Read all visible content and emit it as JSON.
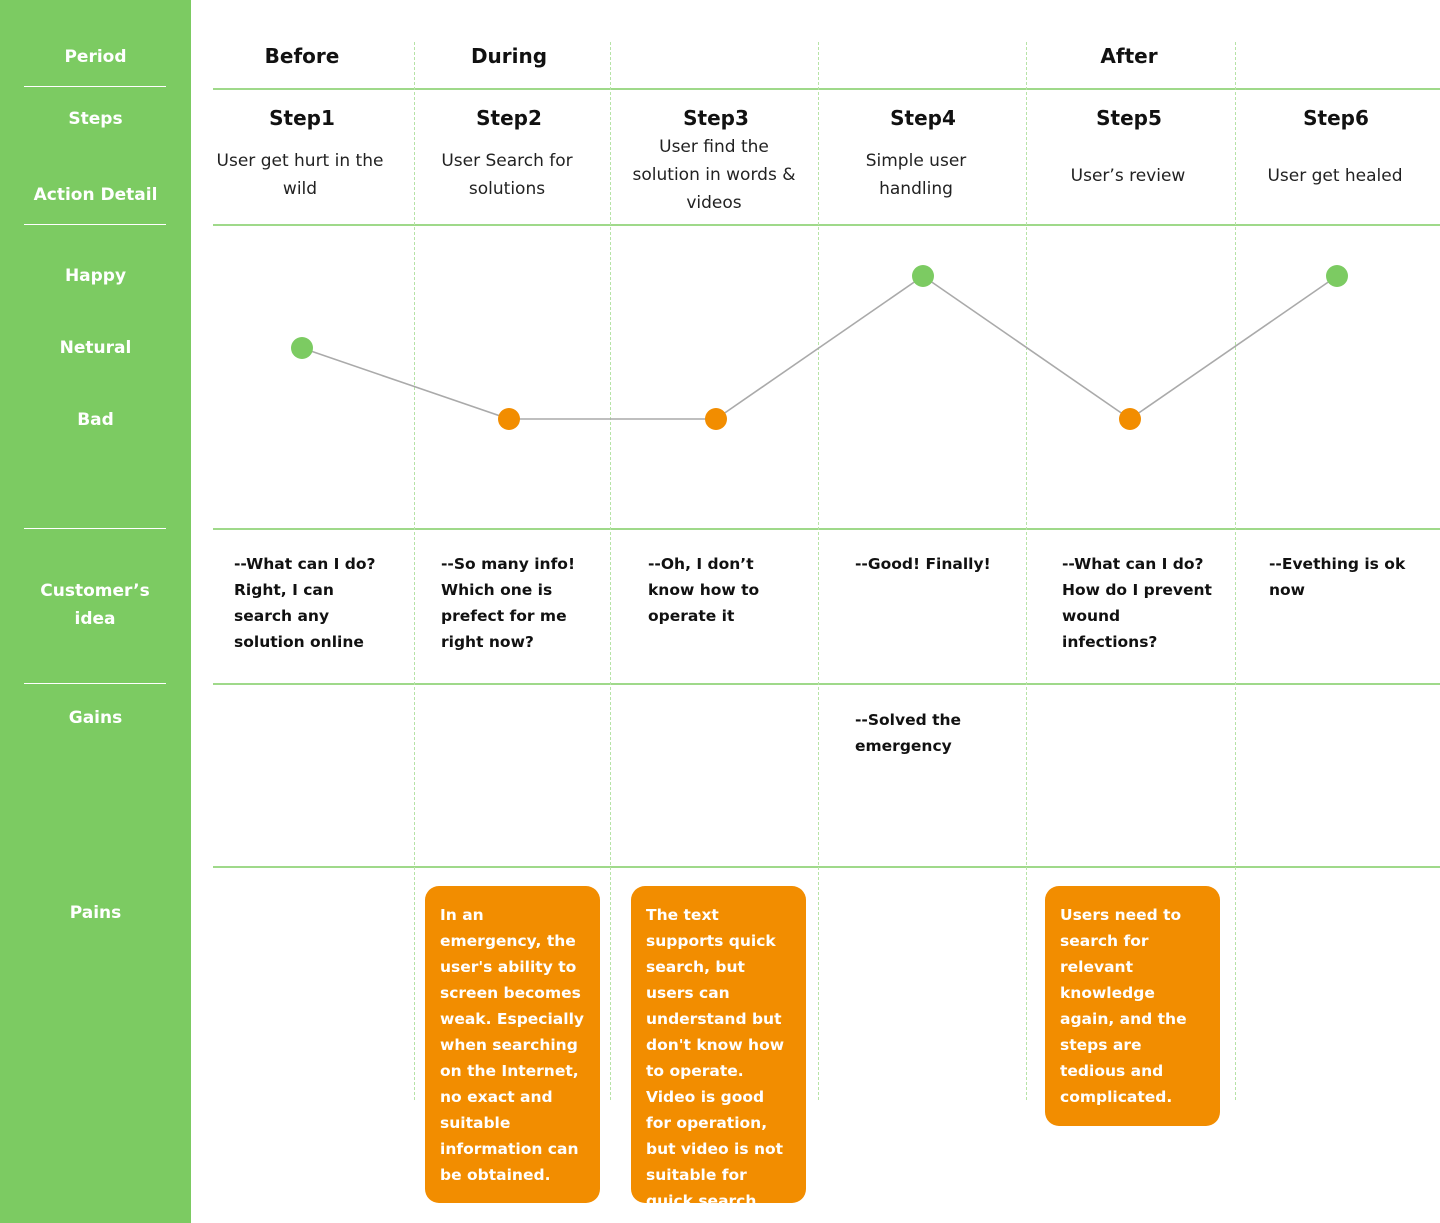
{
  "sidebar": {
    "period": "Period",
    "steps": "Steps",
    "action_detail": "Action Detail",
    "happy": "Happy",
    "neutral": "Netural",
    "bad": "Bad",
    "customers_idea": "Customer’s idea",
    "gains": "Gains",
    "pains": "Pains"
  },
  "periods": [
    "Before",
    "During",
    "",
    "",
    "After",
    ""
  ],
  "columns": [
    {
      "step": "Step1",
      "detail": "User get hurt in the wild",
      "emotion": "Netural",
      "idea": "--What can I do? Right, I can search any solution online",
      "gain": "",
      "pain": ""
    },
    {
      "step": "Step2",
      "detail": "User Search for solutions",
      "emotion": "Bad",
      "idea": "--So many info! Which one is prefect for me right now?",
      "gain": "",
      "pain": "In an emergency, the user's ability to screen becomes weak. Especially when searching on the Internet, no exact and suitable information can be obtained."
    },
    {
      "step": "Step3",
      "detail": "User find the solution in words & videos",
      "emotion": "Bad",
      "idea": "--Oh, I don’t know how to operate it",
      "gain": "",
      "pain": "The text supports quick search, but users can understand but don't know how to operate. Video is good for operation, but video is not suitable for quick search."
    },
    {
      "step": "Step4",
      "detail": "Simple user handling",
      "emotion": "Happy",
      "idea": "--Good! Finally!",
      "gain": "--Solved the emergency",
      "pain": ""
    },
    {
      "step": "Step5",
      "detail": "User’s review",
      "emotion": "Bad",
      "idea": "--What can I do? How do I prevent wound infections?",
      "gain": "",
      "pain": "Users need to search for relevant knowledge again, and the steps are tedious and complicated."
    },
    {
      "step": "Step6",
      "detail": "User get healed",
      "emotion": "Happy",
      "idea": "--Evething is ok now",
      "gain": "",
      "pain": ""
    }
  ],
  "chart_data": {
    "type": "line",
    "categories": [
      "Step1",
      "Step2",
      "Step3",
      "Step4",
      "Step5",
      "Step6"
    ],
    "levels": [
      "Bad",
      "Netural",
      "Happy"
    ],
    "values": [
      "Netural",
      "Bad",
      "Bad",
      "Happy",
      "Bad",
      "Happy"
    ],
    "point_colors": {
      "Happy": "#7ccb62",
      "Netural": "#7ccb62",
      "Bad": "#f28d00"
    }
  },
  "colors": {
    "accent_green": "#7ccb62",
    "accent_orange": "#f28d00",
    "line_gray": "#aaaaaa"
  }
}
